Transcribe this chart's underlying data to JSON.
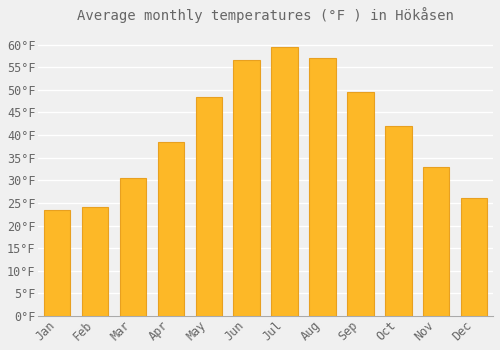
{
  "title": "Average monthly temperatures (°F ) in Hökåsen",
  "months": [
    "Jan",
    "Feb",
    "Mar",
    "Apr",
    "May",
    "Jun",
    "Jul",
    "Aug",
    "Sep",
    "Oct",
    "Nov",
    "Dec"
  ],
  "values": [
    23.5,
    24.0,
    30.5,
    38.5,
    48.5,
    56.5,
    59.5,
    57.0,
    49.5,
    42.0,
    33.0,
    26.0
  ],
  "bar_color": "#FDB827",
  "bar_edge_color": "#E8A020",
  "background_color": "#f0f0f0",
  "grid_color": "#ffffff",
  "text_color": "#666666",
  "ylim": [
    0,
    63
  ],
  "yticks": [
    0,
    5,
    10,
    15,
    20,
    25,
    30,
    35,
    40,
    45,
    50,
    55,
    60
  ],
  "title_fontsize": 10,
  "tick_fontsize": 8.5
}
